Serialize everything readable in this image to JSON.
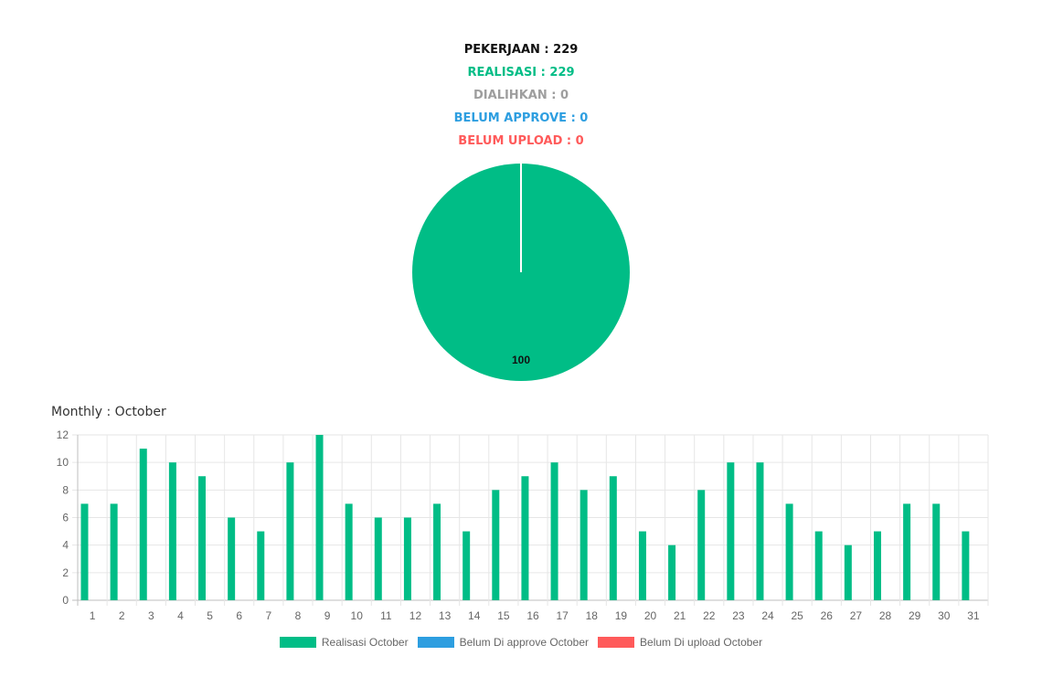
{
  "summary": {
    "pekerjaan": "PEKERJAAN : 229",
    "realisasi": "REALISASI : 229",
    "dialihkan": "DIALIHKAN : 0",
    "belum_approve": "BELUM APPROVE : 0",
    "belum_upload": "BELUM UPLOAD : 0"
  },
  "colors": {
    "pekerjaan": "#111111",
    "realisasi": "#00bd86",
    "dialihkan": "#9e9e9e",
    "belum_approve": "#2d9ee0",
    "belum_upload": "#ff5a5a"
  },
  "monthly_title": "Monthly : October",
  "chart_data": [
    {
      "type": "pie",
      "slices": [
        {
          "value": 100,
          "label": "100",
          "color": "#00bd86"
        }
      ]
    },
    {
      "type": "bar",
      "categories": [
        "1",
        "2",
        "3",
        "4",
        "5",
        "6",
        "7",
        "8",
        "9",
        "10",
        "11",
        "12",
        "13",
        "14",
        "15",
        "16",
        "17",
        "18",
        "19",
        "20",
        "21",
        "22",
        "23",
        "24",
        "25",
        "26",
        "27",
        "28",
        "29",
        "30",
        "31"
      ],
      "series": [
        {
          "name": "Realisasi October",
          "color": "#00bd86",
          "values": [
            7,
            7,
            11,
            10,
            9,
            6,
            5,
            10,
            12,
            7,
            6,
            6,
            7,
            5,
            8,
            9,
            10,
            8,
            9,
            5,
            4,
            8,
            10,
            10,
            7,
            5,
            4,
            5,
            7,
            7,
            5
          ]
        },
        {
          "name": "Belum Di approve October",
          "color": "#2d9ee0",
          "values": [
            0,
            0,
            0,
            0,
            0,
            0,
            0,
            0,
            0,
            0,
            0,
            0,
            0,
            0,
            0,
            0,
            0,
            0,
            0,
            0,
            0,
            0,
            0,
            0,
            0,
            0,
            0,
            0,
            0,
            0,
            0
          ]
        },
        {
          "name": "Belum Di upload October",
          "color": "#ff5a5a",
          "values": [
            0,
            0,
            0,
            0,
            0,
            0,
            0,
            0,
            0,
            0,
            0,
            0,
            0,
            0,
            0,
            0,
            0,
            0,
            0,
            0,
            0,
            0,
            0,
            0,
            0,
            0,
            0,
            0,
            0,
            0,
            0
          ]
        }
      ],
      "y_ticks": [
        "0",
        "2",
        "4",
        "6",
        "8",
        "10",
        "12"
      ],
      "ylim": [
        0,
        12
      ],
      "grid": true,
      "legend_position": "bottom"
    }
  ]
}
